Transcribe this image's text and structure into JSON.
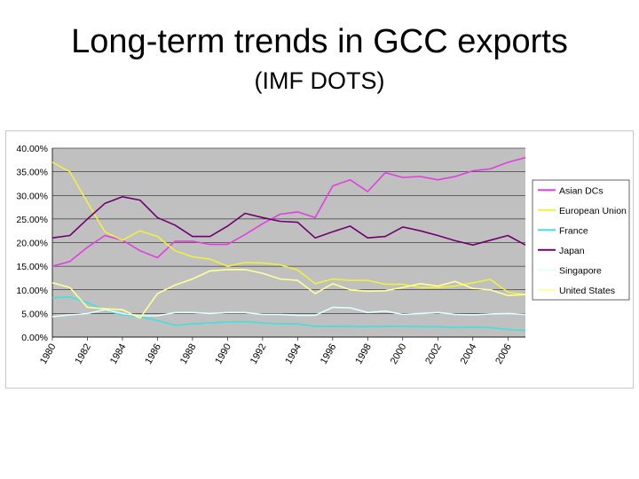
{
  "slide": {
    "title": "Long-term trends in GCC exports",
    "subtitle": "(IMF DOTS)"
  },
  "chart_data": {
    "type": "line",
    "title": "",
    "xlabel": "",
    "ylabel": "",
    "x": [
      1980,
      1981,
      1982,
      1983,
      1984,
      1985,
      1986,
      1987,
      1988,
      1989,
      1990,
      1991,
      1992,
      1993,
      1994,
      1995,
      1996,
      1997,
      1998,
      1999,
      2000,
      2001,
      2002,
      2003,
      2004,
      2005,
      2006,
      2007
    ],
    "x_tick_labels": [
      "1980",
      "1982",
      "1984",
      "1986",
      "1988",
      "1990",
      "1992",
      "1994",
      "1996",
      "1998",
      "2000",
      "2002",
      "2004",
      "2006"
    ],
    "y_tick_labels": [
      "0.00%",
      "5.00%",
      "10.00%",
      "15.00%",
      "20.00%",
      "25.00%",
      "30.00%",
      "35.00%",
      "40.00%"
    ],
    "ylim": [
      0,
      0.4
    ],
    "grid": true,
    "plot_background": "#c0c0c0",
    "legend_position": "right",
    "series": [
      {
        "name": "Asian DCs",
        "color": "#e040e0",
        "values": [
          0.15,
          0.16,
          0.19,
          0.215,
          0.205,
          0.183,
          0.168,
          0.203,
          0.203,
          0.196,
          0.196,
          0.217,
          0.24,
          0.26,
          0.265,
          0.253,
          0.32,
          0.333,
          0.308,
          0.348,
          0.338,
          0.34,
          0.333,
          0.34,
          0.352,
          0.356,
          0.37,
          0.38
        ]
      },
      {
        "name": "European Union",
        "color": "#f0f040",
        "values": [
          0.37,
          0.35,
          0.285,
          0.223,
          0.205,
          0.225,
          0.213,
          0.183,
          0.17,
          0.165,
          0.15,
          0.158,
          0.157,
          0.153,
          0.142,
          0.113,
          0.123,
          0.12,
          0.12,
          0.112,
          0.112,
          0.105,
          0.105,
          0.108,
          0.115,
          0.122,
          0.095,
          0.09
        ]
      },
      {
        "name": "France",
        "color": "#40e0e0",
        "values": [
          0.083,
          0.085,
          0.073,
          0.057,
          0.047,
          0.043,
          0.035,
          0.025,
          0.028,
          0.03,
          0.032,
          0.033,
          0.03,
          0.028,
          0.028,
          0.023,
          0.023,
          0.023,
          0.022,
          0.023,
          0.023,
          0.022,
          0.022,
          0.02,
          0.021,
          0.02,
          0.016,
          0.014
        ]
      },
      {
        "name": "Japan",
        "color": "#700070",
        "values": [
          0.21,
          0.215,
          0.25,
          0.283,
          0.297,
          0.29,
          0.253,
          0.237,
          0.213,
          0.213,
          0.235,
          0.262,
          0.253,
          0.245,
          0.243,
          0.21,
          0.223,
          0.235,
          0.21,
          0.213,
          0.233,
          0.225,
          0.215,
          0.204,
          0.195,
          0.205,
          0.215,
          0.195
        ]
      },
      {
        "name": "Singapore",
        "color": "#e0ffff",
        "values": [
          0.043,
          0.047,
          0.05,
          0.058,
          0.05,
          0.045,
          0.045,
          0.052,
          0.052,
          0.05,
          0.052,
          0.052,
          0.048,
          0.048,
          0.046,
          0.046,
          0.063,
          0.062,
          0.052,
          0.055,
          0.048,
          0.05,
          0.052,
          0.048,
          0.047,
          0.049,
          0.05,
          0.048
        ]
      },
      {
        "name": "United States",
        "color": "#ffff99",
        "values": [
          0.115,
          0.105,
          0.063,
          0.06,
          0.058,
          0.04,
          0.092,
          0.11,
          0.123,
          0.14,
          0.143,
          0.143,
          0.135,
          0.123,
          0.12,
          0.092,
          0.113,
          0.1,
          0.097,
          0.098,
          0.105,
          0.113,
          0.108,
          0.118,
          0.103,
          0.1,
          0.088,
          0.09
        ]
      }
    ]
  }
}
